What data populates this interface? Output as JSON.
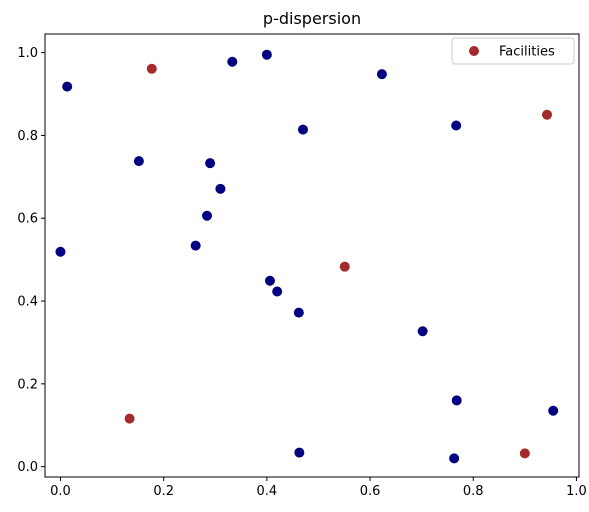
{
  "chart_data": {
    "type": "scatter",
    "title": "p-dispersion",
    "xlabel": "",
    "ylabel": "",
    "xlim": [
      -0.03,
      1.005
    ],
    "ylim": [
      -0.025,
      1.045
    ],
    "xticks": [
      0.0,
      0.2,
      0.4,
      0.6,
      0.8,
      1.0
    ],
    "xtick_labels": [
      "0.0",
      "0.2",
      "0.4",
      "0.6",
      "0.8",
      "1.0"
    ],
    "yticks": [
      0.0,
      0.2,
      0.4,
      0.6,
      0.8,
      1.0
    ],
    "ytick_labels": [
      "0.0",
      "0.2",
      "0.4",
      "0.6",
      "0.8",
      "1.0"
    ],
    "grid": false,
    "legend_position": "top-right",
    "series": [
      {
        "color": "#000080",
        "points": [
          [
            0.013,
            0.918
          ],
          [
            0.0,
            0.519
          ],
          [
            0.152,
            0.738
          ],
          [
            0.29,
            0.733
          ],
          [
            0.31,
            0.671
          ],
          [
            0.284,
            0.606
          ],
          [
            0.262,
            0.534
          ],
          [
            0.333,
            0.978
          ],
          [
            0.4,
            0.995
          ],
          [
            0.47,
            0.814
          ],
          [
            0.406,
            0.449
          ],
          [
            0.42,
            0.423
          ],
          [
            0.462,
            0.372
          ],
          [
            0.623,
            0.948
          ],
          [
            0.767,
            0.824
          ],
          [
            0.702,
            0.327
          ],
          [
            0.768,
            0.16
          ],
          [
            0.955,
            0.135
          ],
          [
            0.463,
            0.034
          ],
          [
            0.763,
            0.02
          ]
        ]
      },
      {
        "name": "Facilities",
        "color": "#a52a2a",
        "points": [
          [
            0.177,
            0.961
          ],
          [
            0.943,
            0.85
          ],
          [
            0.551,
            0.483
          ],
          [
            0.134,
            0.116
          ],
          [
            0.9,
            0.032
          ]
        ]
      }
    ]
  }
}
